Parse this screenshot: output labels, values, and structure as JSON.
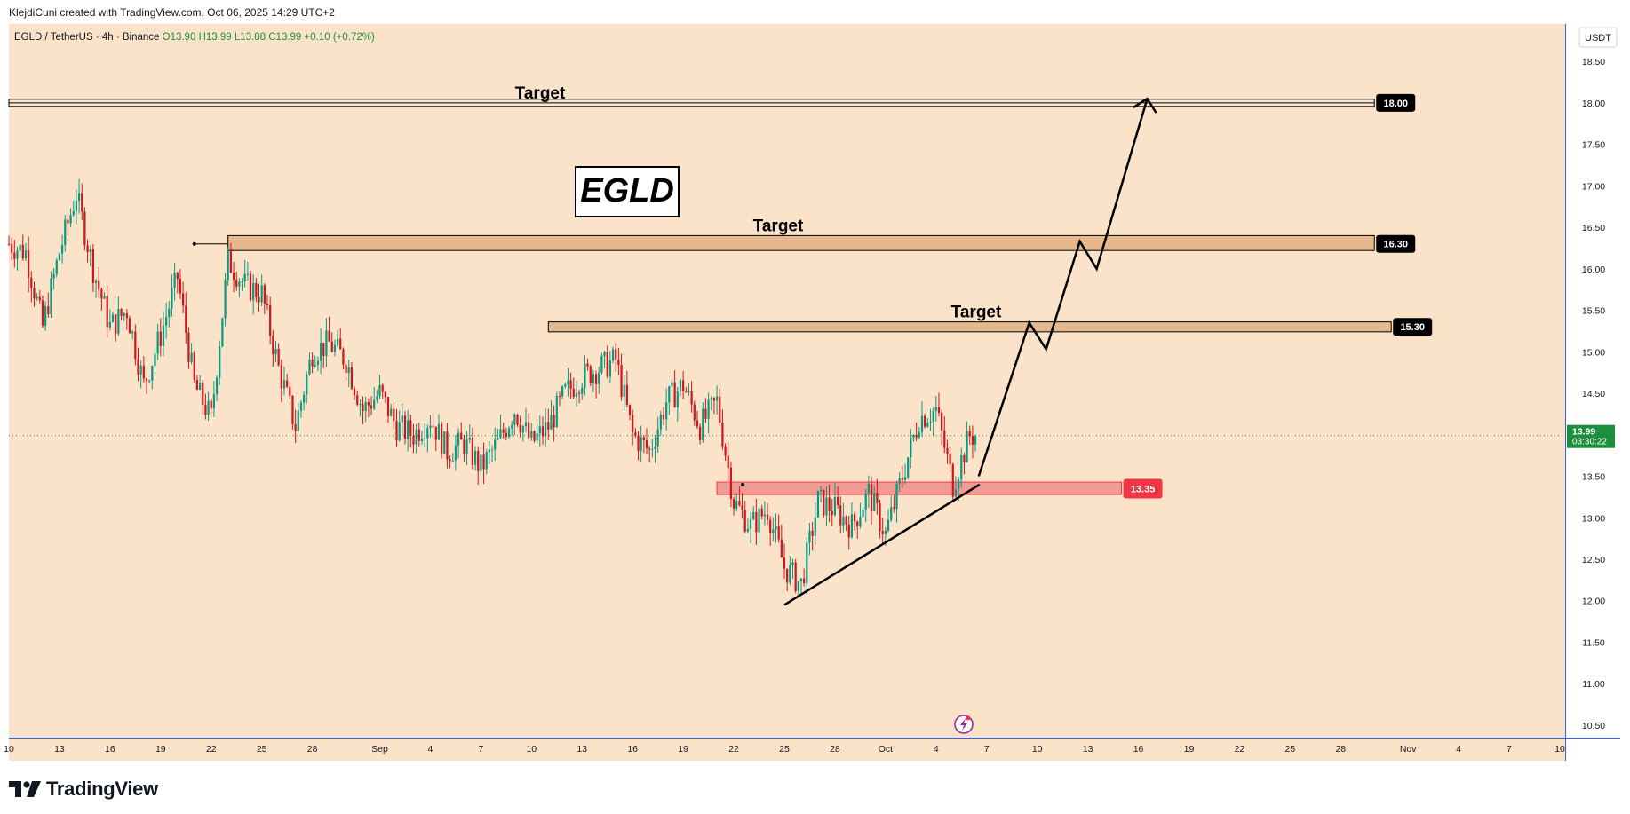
{
  "header": {
    "attribution": "KlejdiCuni created with TradingView.com, Oct 06, 2025 14:29 UTC+2"
  },
  "ohlc": {
    "symbol": "EGLD / TetherUS · 4h · Binance",
    "o": "O13.90",
    "h": "H13.99",
    "l": "L13.88",
    "c": "C13.99",
    "change": "+0.10 (+0.72%)"
  },
  "currency_button": "USDT",
  "footer": {
    "brand": "TradingView"
  },
  "colors": {
    "background": "#fbe3c9",
    "bull": "#089981",
    "bear": "#d1151a",
    "zone_fill": "#e6b88d",
    "support_zone": "#f19a93",
    "support_label": "#f23645",
    "price_label": "#1d8f3c",
    "axis_border": "#2962ff"
  },
  "chart_data": {
    "type": "candlestick",
    "title": "EGLD",
    "y_axis": {
      "ticks": [
        "10.50",
        "11.00",
        "11.50",
        "12.00",
        "12.50",
        "13.00",
        "13.50",
        "14.00",
        "14.50",
        "15.00",
        "15.50",
        "16.00",
        "16.50",
        "17.00",
        "17.50",
        "18.00",
        "18.50"
      ],
      "range": [
        10.35,
        18.95
      ]
    },
    "x_axis": {
      "ticks": [
        "10",
        "13",
        "16",
        "19",
        "22",
        "25",
        "28",
        "Sep",
        "4",
        "7",
        "10",
        "13",
        "16",
        "19",
        "22",
        "25",
        "28",
        "Oct",
        "4",
        "7",
        "10",
        "13",
        "16",
        "19",
        "22",
        "25",
        "28",
        "Nov",
        "4",
        "7",
        "10"
      ],
      "start": "2025-08-10",
      "end": "2025-11-10",
      "last_candle": "2025-10-06"
    },
    "current_price": {
      "value": "13.99",
      "countdown": "03:30:22"
    },
    "levels": [
      {
        "label": "Target",
        "value": 18.0,
        "tag": "18.00",
        "start": "2025-08-10",
        "end": "2025-10-30"
      },
      {
        "label": "Target",
        "value": 16.3,
        "tag": "16.30",
        "start": "2025-08-23",
        "end": "2025-10-30",
        "band": [
          16.22,
          16.4
        ]
      },
      {
        "label": "Target",
        "value": 15.3,
        "tag": "15.30",
        "start": "2025-09-11",
        "end": "2025-10-31",
        "band": [
          15.24,
          15.36
        ]
      }
    ],
    "support_zone": {
      "tag": "13.35",
      "band": [
        13.28,
        13.43
      ],
      "start": "2025-09-21",
      "end": "2025-10-15"
    },
    "trendline": [
      {
        "date": "2025-09-25",
        "price": 11.95
      },
      {
        "date": "2025-10-05",
        "price": 13.4
      }
    ],
    "projection": [
      {
        "date": "2025-10-06",
        "price": 13.5
      },
      {
        "date": "2025-10-09",
        "price": 15.35
      },
      {
        "date": "2025-10-10",
        "price": 15.03
      },
      {
        "date": "2025-10-12",
        "price": 16.33
      },
      {
        "date": "2025-10-13",
        "price": 16.0
      },
      {
        "date": "2025-10-16",
        "price": 18.05
      }
    ],
    "price_path": [
      [
        "2025-08-10",
        16.3
      ],
      [
        "2025-08-11",
        16.2
      ],
      [
        "2025-08-12",
        15.3
      ],
      [
        "2025-08-13",
        16.2
      ],
      [
        "2025-08-14",
        16.9
      ],
      [
        "2025-08-15",
        16.0
      ],
      [
        "2025-08-16",
        15.3
      ],
      [
        "2025-08-17",
        15.5
      ],
      [
        "2025-08-18",
        14.6
      ],
      [
        "2025-08-19",
        15.2
      ],
      [
        "2025-08-20",
        15.9
      ],
      [
        "2025-08-21",
        14.6
      ],
      [
        "2025-08-22",
        14.2
      ],
      [
        "2025-08-23",
        16.1
      ],
      [
        "2025-08-24",
        15.8
      ],
      [
        "2025-08-25",
        15.7
      ],
      [
        "2025-08-26",
        14.8
      ],
      [
        "2025-08-27",
        14.1
      ],
      [
        "2025-08-28",
        15.0
      ],
      [
        "2025-08-29",
        15.1
      ],
      [
        "2025-08-30",
        14.9
      ],
      [
        "2025-08-31",
        14.3
      ],
      [
        "2025-09-01",
        14.5
      ],
      [
        "2025-09-02",
        14.1
      ],
      [
        "2025-09-03",
        14.0
      ],
      [
        "2025-09-04",
        14.2
      ],
      [
        "2025-09-05",
        13.8
      ],
      [
        "2025-09-06",
        13.9
      ],
      [
        "2025-09-07",
        13.6
      ],
      [
        "2025-09-08",
        13.9
      ],
      [
        "2025-09-09",
        14.3
      ],
      [
        "2025-09-10",
        13.9
      ],
      [
        "2025-09-11",
        14.1
      ],
      [
        "2025-09-12",
        14.5
      ],
      [
        "2025-09-13",
        14.7
      ],
      [
        "2025-09-14",
        14.8
      ],
      [
        "2025-09-15",
        14.9
      ],
      [
        "2025-09-16",
        14.0
      ],
      [
        "2025-09-17",
        13.8
      ],
      [
        "2025-09-18",
        14.4
      ],
      [
        "2025-09-19",
        14.6
      ],
      [
        "2025-09-20",
        14.1
      ],
      [
        "2025-09-21",
        14.4
      ],
      [
        "2025-09-22",
        13.2
      ],
      [
        "2025-09-23",
        12.9
      ],
      [
        "2025-09-24",
        13.1
      ],
      [
        "2025-09-25",
        12.4
      ],
      [
        "2025-09-26",
        12.2
      ],
      [
        "2025-09-27",
        13.2
      ],
      [
        "2025-09-28",
        13.1
      ],
      [
        "2025-09-29",
        12.9
      ],
      [
        "2025-09-30",
        13.3
      ],
      [
        "2025-10-01",
        12.8
      ],
      [
        "2025-10-02",
        13.5
      ],
      [
        "2025-10-03",
        14.2
      ],
      [
        "2025-10-04",
        14.3
      ],
      [
        "2025-10-05",
        13.4
      ],
      [
        "2025-10-06",
        13.99
      ]
    ]
  }
}
